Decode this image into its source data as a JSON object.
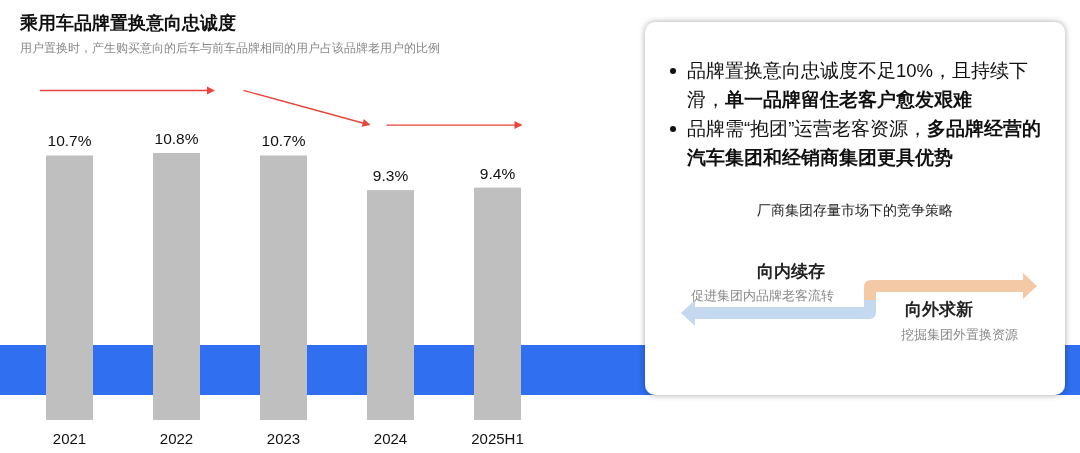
{
  "chart_data": [
    {
      "type": "bar",
      "title": "乘用车品牌置换意向忠诚度",
      "subtitle": "用户置换时，产生购买意向的后车与前车品牌相同的用户占该品牌老用户的比例",
      "categories": [
        "2021",
        "2022",
        "2023",
        "2024",
        "2025H1"
      ],
      "values": [
        10.7,
        10.8,
        10.7,
        9.3,
        9.4
      ],
      "value_labels": [
        "10.7%",
        "10.8%",
        "10.7%",
        "9.3%",
        "9.4%"
      ],
      "color": "#bfbfbf"
    },
    {
      "type": "other",
      "annotations": [
        "品牌置换意向忠诚度不足10%，且持续下滑，**单一品牌留住老客户愈发艰难**",
        "品牌需“抱团”运营老客资源，**多品牌经营的汽车集团和经销商集团更具优势**",
        "厂商集团存量市场下的竞争策略",
        "向内续存",
        "促进集团内品牌老客流转",
        "向外求新",
        "挖掘集团外置换资源"
      ]
    }
  ]
}
